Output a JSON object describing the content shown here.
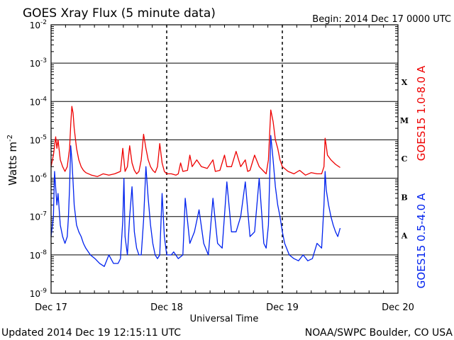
{
  "chart_data": {
    "type": "line",
    "title": "GOES Xray Flux (5 minute data)",
    "begin_label": "Begin:  2014 Dec 17 0000 UTC",
    "ylabel": "Watts m",
    "ylabel_superscript": "-2",
    "xlabel": "Universal Time",
    "y_scale": "log",
    "ylim": [
      1e-09,
      0.01
    ],
    "y_ticks": [
      {
        "base": "10",
        "exp": "-9",
        "value": 1e-09
      },
      {
        "base": "10",
        "exp": "-8",
        "value": 1e-08
      },
      {
        "base": "10",
        "exp": "-7",
        "value": 1e-07
      },
      {
        "base": "10",
        "exp": "-6",
        "value": 1e-06
      },
      {
        "base": "10",
        "exp": "-5",
        "value": 1e-05
      },
      {
        "base": "10",
        "exp": "-4",
        "value": 0.0001
      },
      {
        "base": "10",
        "exp": "-3",
        "value": 0.001
      },
      {
        "base": "10",
        "exp": "-2",
        "value": 0.01
      }
    ],
    "x_ticks": [
      {
        "label": "Dec 17",
        "day": 0
      },
      {
        "label": "Dec 18",
        "day": 1
      },
      {
        "label": "Dec 19",
        "day": 2
      },
      {
        "label": "Dec 20",
        "day": 3
      }
    ],
    "xlim_days": [
      0,
      3
    ],
    "flare_classes": [
      {
        "label": "X",
        "value": 0.00032
      },
      {
        "label": "M",
        "value": 3.2e-05
      },
      {
        "label": "C",
        "value": 3.2e-06
      },
      {
        "label": "B",
        "value": 3.2e-07
      },
      {
        "label": "A",
        "value": 3.2e-08
      }
    ],
    "grid": true,
    "series": [
      {
        "name": "GOES15 1.0-8.0 A",
        "color": "#ee0000",
        "x_days": [
          0.0,
          0.02,
          0.04,
          0.05,
          0.06,
          0.08,
          0.1,
          0.12,
          0.14,
          0.16,
          0.17,
          0.18,
          0.19,
          0.2,
          0.22,
          0.24,
          0.26,
          0.28,
          0.3,
          0.35,
          0.4,
          0.45,
          0.5,
          0.55,
          0.6,
          0.62,
          0.63,
          0.64,
          0.66,
          0.68,
          0.7,
          0.72,
          0.74,
          0.76,
          0.78,
          0.8,
          0.82,
          0.84,
          0.86,
          0.88,
          0.9,
          0.92,
          0.94,
          0.96,
          0.98,
          1.0,
          1.04,
          1.08,
          1.1,
          1.12,
          1.14,
          1.18,
          1.2,
          1.22,
          1.26,
          1.3,
          1.35,
          1.4,
          1.42,
          1.46,
          1.5,
          1.52,
          1.56,
          1.6,
          1.64,
          1.68,
          1.7,
          1.72,
          1.76,
          1.8,
          1.84,
          1.86,
          1.88,
          1.9,
          1.92,
          1.94,
          1.96,
          1.98,
          2.0,
          2.05,
          2.1,
          2.15,
          2.2,
          2.25,
          2.3,
          2.34,
          2.36,
          2.37,
          2.38,
          2.39,
          2.42,
          2.46,
          2.5
        ],
        "y": [
          2e-06,
          4e-06,
          1.2e-05,
          6e-06,
          1e-05,
          3e-06,
          2e-06,
          1.5e-06,
          2e-06,
          6e-06,
          2.5e-05,
          7.5e-05,
          5e-05,
          2e-05,
          6e-06,
          3e-06,
          2e-06,
          1.6e-06,
          1.4e-06,
          1.2e-06,
          1.1e-06,
          1.3e-06,
          1.2e-06,
          1.3e-06,
          1.5e-06,
          6e-06,
          3e-06,
          1.5e-06,
          2e-06,
          7e-06,
          2.5e-06,
          1.6e-06,
          1.3e-06,
          1.5e-06,
          3e-06,
          1.4e-05,
          6e-06,
          3e-06,
          2e-06,
          1.6e-06,
          1.4e-06,
          2e-06,
          8e-06,
          2.5e-06,
          1.5e-06,
          1.3e-06,
          1.3e-06,
          1.2e-06,
          1.3e-06,
          2.5e-06,
          1.5e-06,
          1.6e-06,
          4e-06,
          2e-06,
          3e-06,
          2e-06,
          1.8e-06,
          3e-06,
          1.5e-06,
          1.6e-06,
          4e-06,
          2e-06,
          2e-06,
          5e-06,
          2e-06,
          3e-06,
          1.5e-06,
          1.6e-06,
          4e-06,
          2e-06,
          1.5e-06,
          1.3e-06,
          3e-06,
          6e-05,
          3e-05,
          1e-05,
          6e-06,
          3e-06,
          2e-06,
          1.5e-06,
          1.3e-06,
          1.6e-06,
          1.2e-06,
          1.4e-06,
          1.3e-06,
          1.3e-06,
          2e-06,
          1.1e-05,
          7e-06,
          4e-06,
          3e-06,
          2.3e-06,
          1.9e-06
        ]
      },
      {
        "name": "GOES15 0.5-4.0 A",
        "color": "#0022ee",
        "x_days": [
          0.0,
          0.02,
          0.03,
          0.05,
          0.06,
          0.08,
          0.1,
          0.12,
          0.14,
          0.15,
          0.16,
          0.17,
          0.18,
          0.19,
          0.2,
          0.22,
          0.24,
          0.26,
          0.28,
          0.3,
          0.34,
          0.38,
          0.42,
          0.46,
          0.5,
          0.54,
          0.58,
          0.6,
          0.62,
          0.63,
          0.64,
          0.66,
          0.68,
          0.7,
          0.72,
          0.74,
          0.76,
          0.78,
          0.8,
          0.82,
          0.84,
          0.86,
          0.88,
          0.9,
          0.92,
          0.94,
          0.96,
          0.98,
          1.0,
          1.02,
          1.04,
          1.06,
          1.1,
          1.14,
          1.16,
          1.2,
          1.24,
          1.28,
          1.32,
          1.36,
          1.4,
          1.44,
          1.48,
          1.52,
          1.56,
          1.6,
          1.64,
          1.68,
          1.72,
          1.76,
          1.8,
          1.84,
          1.86,
          1.88,
          1.9,
          1.92,
          1.94,
          1.96,
          1.98,
          2.0,
          2.02,
          2.06,
          2.1,
          2.14,
          2.18,
          2.22,
          2.26,
          2.3,
          2.34,
          2.36,
          2.37,
          2.38,
          2.4,
          2.42,
          2.44,
          2.46,
          2.48,
          2.5
        ],
        "y": [
          3e-08,
          1e-07,
          1.5e-06,
          2e-07,
          4e-07,
          6e-08,
          3e-08,
          2e-08,
          3e-08,
          1e-07,
          6e-07,
          7e-06,
          3e-06,
          8e-07,
          2e-07,
          6e-08,
          4e-08,
          3e-08,
          2e-08,
          1.5e-08,
          1e-08,
          8e-09,
          6e-09,
          5e-09,
          1e-08,
          6e-09,
          6e-09,
          8e-09,
          8e-08,
          1e-06,
          3e-08,
          1e-08,
          1e-07,
          6e-07,
          4e-08,
          1.5e-08,
          1e-08,
          1e-08,
          8e-08,
          2e-06,
          3e-07,
          6e-08,
          2e-08,
          1e-08,
          8e-09,
          1e-08,
          4e-07,
          3e-08,
          1e-08,
          1e-08,
          1e-08,
          1.2e-08,
          8e-09,
          1e-08,
          3e-07,
          2e-08,
          4e-08,
          1.5e-07,
          2e-08,
          1e-08,
          3e-07,
          2e-08,
          1.5e-08,
          8e-07,
          4e-08,
          4e-08,
          1e-07,
          8e-07,
          3e-08,
          4e-08,
          1e-06,
          2e-08,
          1.5e-08,
          6e-08,
          1.3e-05,
          3e-06,
          6e-07,
          2e-07,
          1e-07,
          4e-08,
          2e-08,
          1e-08,
          8e-09,
          7e-09,
          1e-08,
          7e-09,
          8e-09,
          2e-08,
          1.5e-08,
          2e-07,
          1.5e-06,
          5e-07,
          2e-07,
          1e-07,
          6e-08,
          4e-08,
          3e-08,
          5e-08
        ]
      }
    ]
  },
  "footer": {
    "updated": "Updated 2014 Dec 19 12:15:11 UTC",
    "credit": "NOAA/SWPC Boulder, CO USA"
  }
}
